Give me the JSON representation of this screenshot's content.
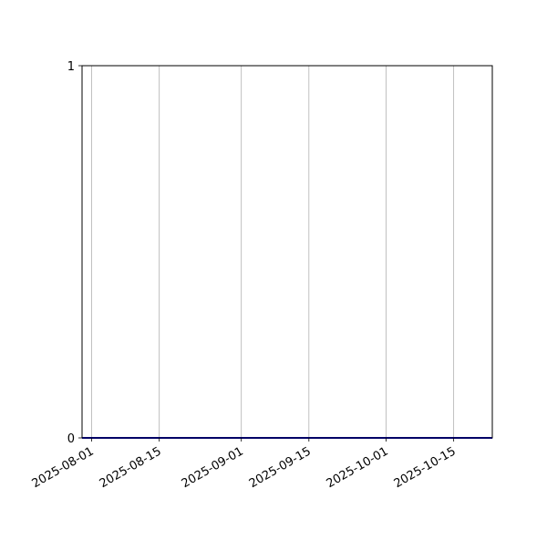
{
  "chart_data": {
    "type": "line",
    "title": "",
    "xlabel": "",
    "ylabel": "",
    "x_axis_type": "date",
    "xlim": [
      "2025-07-30",
      "2025-10-23"
    ],
    "ylim": [
      0,
      1
    ],
    "x_ticks": [
      "2025-08-01",
      "2025-08-15",
      "2025-09-01",
      "2025-09-15",
      "2025-10-01",
      "2025-10-15"
    ],
    "y_ticks": [
      "0",
      "1"
    ],
    "grid": "vertical (x) only",
    "series": [
      {
        "x": [
          "2025-07-30",
          "2025-10-23"
        ],
        "y": [
          0,
          0
        ],
        "color": "#0000cc"
      }
    ],
    "colors": {
      "grid": "#b0b0b0",
      "axes": "#000000",
      "line": "#0000cc"
    }
  }
}
